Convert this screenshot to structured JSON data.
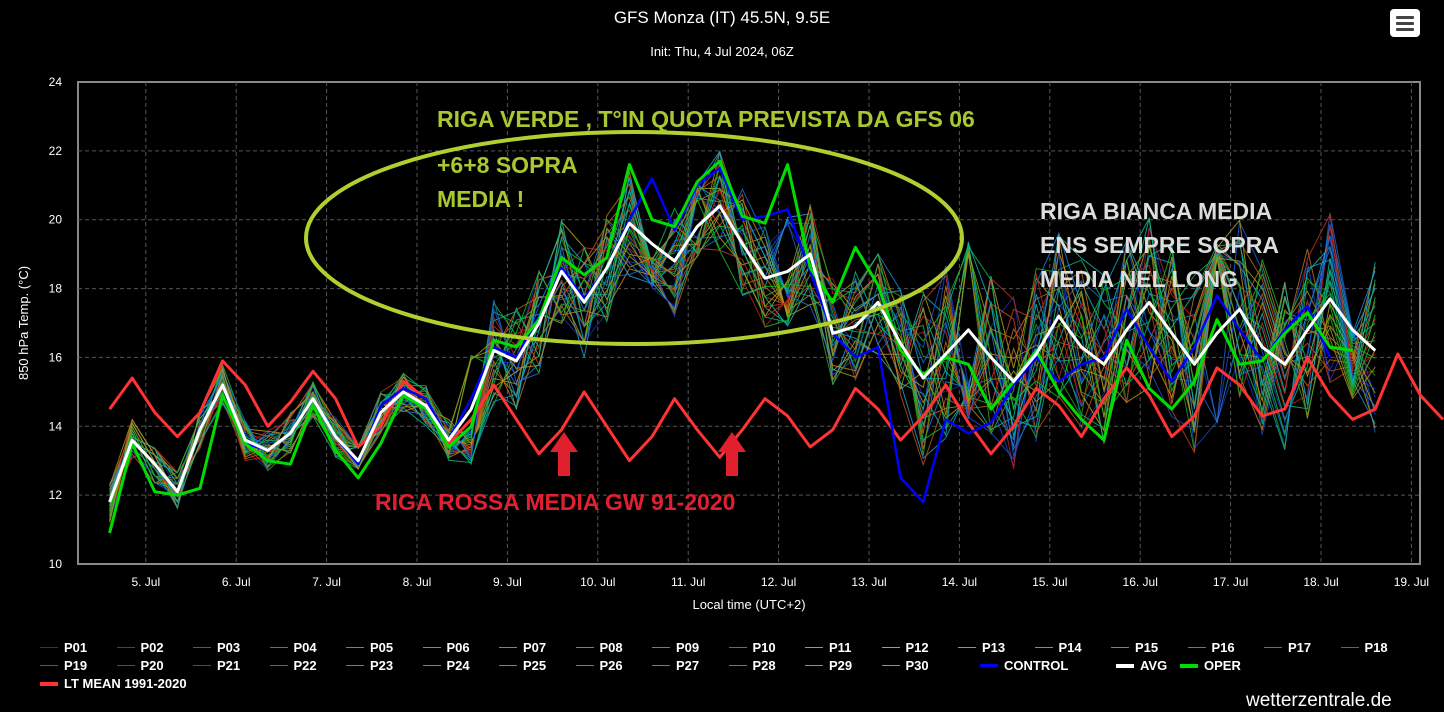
{
  "header": {
    "title": "GFS Monza (IT) 45.5N, 9.5E",
    "subtitle": "Init: Thu, 4 Jul 2024, 06Z",
    "menu_icon": "hamburger-menu-icon"
  },
  "chart_data": {
    "type": "line",
    "xlabel": "Local time (UTC+2)",
    "ylabel": "850 hPa Temp. (°C)",
    "ylim": [
      10,
      24
    ],
    "yticks": [
      10,
      12,
      14,
      16,
      18,
      20,
      22,
      24
    ],
    "xticks": [
      "5. Jul",
      "6. Jul",
      "7. Jul",
      "8. Jul",
      "9. Jul",
      "10. Jul",
      "11. Jul",
      "12. Jul",
      "13. Jul",
      "14. Jul",
      "15. Jul",
      "16. Jul",
      "17. Jul",
      "18. Jul",
      "19. Jul"
    ],
    "x_start_day": 4.6,
    "x_step_days": 0.25,
    "grid": true,
    "series": [
      {
        "name": "CONTROL",
        "color": "#0000ff",
        "values": [
          11.8,
          13.6,
          12.9,
          12.1,
          13.9,
          15.2,
          13.5,
          13.3,
          13.8,
          14.8,
          13.7,
          12.9,
          14.6,
          15.1,
          14.8,
          13.6,
          14.8,
          16.3,
          16.0,
          17.2,
          18.6,
          17.7,
          18.6,
          20.0,
          21.2,
          19.7,
          21.0,
          21.5,
          20.0,
          20.1,
          20.3,
          18.5,
          16.7,
          16.0,
          16.3,
          12.5,
          11.8,
          14.2,
          13.8,
          14.1,
          15.2,
          16.0,
          15.3,
          15.8,
          16.0,
          17.4,
          16.3,
          15.3,
          16.3,
          17.8,
          16.8,
          15.9,
          16.8,
          17.5,
          16.0
        ]
      },
      {
        "name": "AVG",
        "color": "#ffffff",
        "values": [
          11.8,
          13.6,
          12.9,
          12.1,
          13.9,
          15.2,
          13.6,
          13.3,
          13.8,
          14.8,
          13.7,
          13.0,
          14.4,
          15.0,
          14.6,
          13.6,
          14.5,
          16.2,
          15.9,
          17.0,
          18.5,
          17.6,
          18.6,
          19.9,
          19.3,
          18.8,
          19.8,
          20.4,
          19.3,
          18.3,
          18.5,
          19.0,
          16.7,
          16.9,
          17.6,
          16.4,
          15.4,
          16.1,
          16.8,
          16.0,
          15.3,
          16.1,
          17.2,
          16.3,
          15.8,
          16.8,
          17.6,
          16.7,
          15.8,
          16.7,
          17.4,
          16.3,
          15.8,
          16.8,
          17.7,
          16.8,
          16.2
        ]
      },
      {
        "name": "OPER",
        "color": "#00dd00",
        "values": [
          10.9,
          13.5,
          12.1,
          12.0,
          12.2,
          14.9,
          13.5,
          13.0,
          12.9,
          14.6,
          13.3,
          12.5,
          13.5,
          14.9,
          14.5,
          13.4,
          14.0,
          16.5,
          16.3,
          17.1,
          18.9,
          18.4,
          18.9,
          21.6,
          20.0,
          19.8,
          21.1,
          21.7,
          20.1,
          19.9,
          21.6,
          18.6,
          17.6,
          19.2,
          18.1,
          16.2,
          15.5,
          16.0,
          15.8,
          14.5,
          15.3,
          16.2,
          15.0,
          14.2,
          13.6,
          16.5,
          15.1,
          14.5,
          15.3,
          17.1,
          15.8,
          15.9,
          16.7,
          17.3,
          16.3,
          16.2
        ]
      },
      {
        "name": "LT MEAN 1991-2020",
        "color": "#ff3333",
        "values": [
          14.5,
          15.4,
          14.4,
          13.7,
          14.4,
          15.9,
          15.2,
          14.0,
          14.7,
          15.6,
          14.8,
          13.4,
          14.0,
          15.3,
          14.8,
          13.5,
          14.2,
          15.2,
          14.2,
          13.2,
          13.9,
          15.0,
          14.0,
          13.0,
          13.7,
          14.8,
          13.9,
          13.1,
          13.9,
          14.8,
          14.3,
          13.4,
          13.9,
          15.1,
          14.5,
          13.6,
          14.3,
          15.2,
          14.1,
          13.2,
          14.0,
          15.1,
          14.6,
          13.7,
          14.8,
          15.7,
          14.9,
          13.7,
          14.3,
          15.7,
          15.2,
          14.3,
          14.5,
          16.0,
          14.9,
          14.2,
          14.5,
          16.1,
          14.9,
          14.2
        ]
      }
    ],
    "legend": [
      "P01",
      "P02",
      "P03",
      "P04",
      "P05",
      "P06",
      "P07",
      "P08",
      "P09",
      "P10",
      "P11",
      "P12",
      "P13",
      "P14",
      "P15",
      "P16",
      "P17",
      "P18",
      "P19",
      "P20",
      "P21",
      "P22",
      "P23",
      "P24",
      "P25",
      "P26",
      "P27",
      "P28",
      "P29",
      "P30",
      "CONTROL",
      "AVG",
      "OPER",
      "LT MEAN 1991-2020"
    ],
    "legend_colors": [
      "#1a2fb0",
      "#1a45c8",
      "#1a60d8",
      "#1a80e0",
      "#1a9fd8",
      "#10b8b8",
      "#10b890",
      "#10b860",
      "#10c030",
      "#20a020",
      "#b0a020",
      "#c0a020",
      "#c09020",
      "#c08020",
      "#c07020",
      "#c06020",
      "#c05020",
      "#c04020",
      "#c03020",
      "#c02020",
      "#1a50d0",
      "#1a70d8",
      "#10a0c8",
      "#10b0b0",
      "#10b880",
      "#10b850",
      "#10c020",
      "#40a020",
      "#90a020",
      "#b09020",
      "#0000ff",
      "#ffffff",
      "#00dd00",
      "#ff3333"
    ],
    "annotations": [
      {
        "text": "RIGA VERDE , T°IN QUOTA PREVISTA DA GFS 06",
        "color": "#a8c832"
      },
      {
        "text": "+6+8 SOPRA",
        "color": "#a8c832"
      },
      {
        "text": "MEDIA !",
        "color": "#a8c832"
      },
      {
        "text": "RIGA BIANCA MEDIA",
        "color": "#dddddd"
      },
      {
        "text": "ENS SEMPRE SOPRA",
        "color": "#dddddd"
      },
      {
        "text": "MEDIA NEL LONG",
        "color": "#dddddd"
      },
      {
        "text": "RIGA ROSSA MEDIA GW 91-2020",
        "color": "#e02030"
      }
    ]
  },
  "footer": {
    "watermark": "wetterzentrale.de"
  }
}
